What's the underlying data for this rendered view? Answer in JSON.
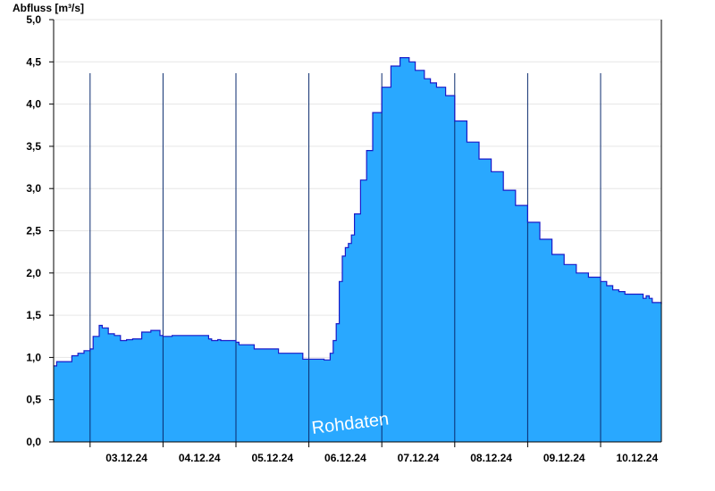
{
  "chart_data": {
    "type": "area",
    "ylabel": "Abfluss [m³/s]",
    "ylim": [
      0,
      5
    ],
    "yticks": [
      0,
      0.5,
      1,
      1.5,
      2,
      2.5,
      3,
      3.5,
      4,
      4.5,
      5
    ],
    "ytick_labels": [
      "0,0",
      "0,5",
      "1,0",
      "1,5",
      "2,0",
      "2,5",
      "3,0",
      "3,5",
      "4,0",
      "4,5",
      "5,0"
    ],
    "xlim": [
      "2024-12-02T12:00",
      "2024-12-10T20:00"
    ],
    "day_separators": [
      "2024-12-03",
      "2024-12-04",
      "2024-12-05",
      "2024-12-06",
      "2024-12-07",
      "2024-12-08",
      "2024-12-09",
      "2024-12-10"
    ],
    "xtick_labels": [
      {
        "date": "2024-12-03T00:00",
        "label": "03.12.24"
      },
      {
        "date": "2024-12-04T00:00",
        "label": "04.12.24"
      },
      {
        "date": "2024-12-05T00:00",
        "label": "05.12.24"
      },
      {
        "date": "2024-12-06T00:00",
        "label": "06.12.24"
      },
      {
        "date": "2024-12-07T00:00",
        "label": "07.12.24"
      },
      {
        "date": "2024-12-08T00:00",
        "label": "08.12.24"
      },
      {
        "date": "2024-12-09T00:00",
        "label": "09.12.24"
      },
      {
        "date": "2024-12-10T00:00",
        "label": "10.12.24"
      }
    ],
    "grid": true,
    "annotation": "Rohdaten",
    "colors": {
      "fill": "#29a8ff",
      "line": "#1a1ac8",
      "separator": "#0a2a6e",
      "grid": "#e6e6e6"
    },
    "series": [
      {
        "x": [
          "2024-12-02T12:00",
          "2024-12-02T13:00",
          "2024-12-02T18:00",
          "2024-12-02T20:00",
          "2024-12-02T22:00",
          "2024-12-03T00:00",
          "2024-12-03T01:00",
          "2024-12-03T03:00",
          "2024-12-03T04:00",
          "2024-12-03T06:00",
          "2024-12-03T08:00",
          "2024-12-03T10:00",
          "2024-12-03T12:00",
          "2024-12-03T14:00",
          "2024-12-03T17:00",
          "2024-12-03T20:00",
          "2024-12-03T23:00",
          "2024-12-04T00:00",
          "2024-12-04T01:00",
          "2024-12-04T03:00",
          "2024-12-04T05:00",
          "2024-12-04T15:00",
          "2024-12-04T16:00",
          "2024-12-04T18:00",
          "2024-12-04T19:00",
          "2024-12-05T00:00",
          "2024-12-05T01:00",
          "2024-12-05T06:00",
          "2024-12-05T14:00",
          "2024-12-05T22:00",
          "2024-12-06T05:00",
          "2024-12-06T07:00",
          "2024-12-06T08:00",
          "2024-12-06T09:00",
          "2024-12-06T10:00",
          "2024-12-06T11:00",
          "2024-12-06T12:00",
          "2024-12-06T13:00",
          "2024-12-06T14:00",
          "2024-12-06T15:00",
          "2024-12-06T17:00",
          "2024-12-06T19:00",
          "2024-12-06T21:00",
          "2024-12-07T00:00",
          "2024-12-07T03:00",
          "2024-12-07T06:00",
          "2024-12-07T09:00",
          "2024-12-07T11:00",
          "2024-12-07T14:00",
          "2024-12-07T16:00",
          "2024-12-07T18:00",
          "2024-12-07T21:00",
          "2024-12-08T00:00",
          "2024-12-08T04:00",
          "2024-12-08T08:00",
          "2024-12-08T12:00",
          "2024-12-08T16:00",
          "2024-12-08T20:00",
          "2024-12-09T00:00",
          "2024-12-09T04:00",
          "2024-12-09T08:00",
          "2024-12-09T12:00",
          "2024-12-09T16:00",
          "2024-12-09T20:00",
          "2024-12-10T00:00",
          "2024-12-10T02:00",
          "2024-12-10T04:00",
          "2024-12-10T06:00",
          "2024-12-10T08:00",
          "2024-12-10T14:00",
          "2024-12-10T15:00",
          "2024-12-10T16:00",
          "2024-12-10T17:00",
          "2024-12-10T20:00"
        ],
        "y": [
          0.9,
          0.95,
          1.02,
          1.05,
          1.08,
          1.1,
          1.25,
          1.38,
          1.35,
          1.28,
          1.26,
          1.2,
          1.21,
          1.22,
          1.3,
          1.32,
          1.26,
          1.25,
          1.25,
          1.26,
          1.26,
          1.22,
          1.2,
          1.21,
          1.2,
          1.18,
          1.15,
          1.1,
          1.05,
          0.98,
          0.97,
          1.05,
          1.2,
          1.4,
          1.9,
          2.2,
          2.3,
          2.35,
          2.45,
          2.7,
          3.1,
          3.45,
          3.9,
          4.2,
          4.45,
          4.55,
          4.5,
          4.4,
          4.3,
          4.25,
          4.2,
          4.1,
          3.8,
          3.55,
          3.35,
          3.2,
          2.98,
          2.8,
          2.6,
          2.4,
          2.22,
          2.1,
          2.0,
          1.95,
          1.9,
          1.85,
          1.8,
          1.78,
          1.75,
          1.7,
          1.73,
          1.7,
          1.65,
          1.63
        ]
      }
    ]
  }
}
